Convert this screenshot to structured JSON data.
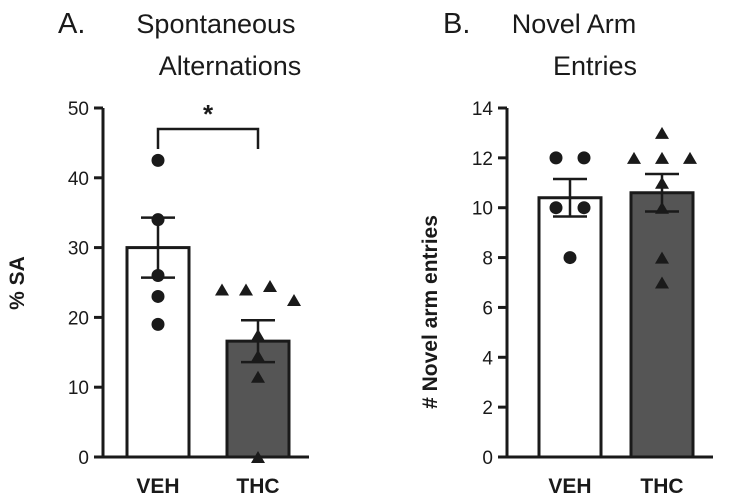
{
  "colors": {
    "ink": "#1a1a1a",
    "veh_fill": "#ffffff",
    "thc_fill": "#555555"
  },
  "chart_data": [
    {
      "type": "bar",
      "panel_letter": "A.",
      "title_lines": [
        "Spontaneous",
        "Alternations"
      ],
      "ylabel": "% SA",
      "xlabel": "",
      "ylim": [
        0,
        50
      ],
      "yticks": [
        0,
        10,
        20,
        30,
        40,
        50
      ],
      "categories": [
        "VEH",
        "THC"
      ],
      "values": [
        30,
        16.6
      ],
      "sem": [
        4.3,
        3.0
      ],
      "individual_points": [
        [
          42.5,
          34.0,
          26.0,
          23.0,
          19.0
        ],
        [
          24.0,
          24.0,
          24.5,
          22.5,
          17.5,
          14.5,
          11.5,
          0.0
        ]
      ],
      "markers": [
        "circle",
        "triangle"
      ],
      "significance": {
        "label": "*",
        "from": "VEH",
        "to": "THC",
        "y": 47
      }
    },
    {
      "type": "bar",
      "panel_letter": "B.",
      "title_lines": [
        "Novel Arm",
        "Entries"
      ],
      "ylabel": "# Novel arm entries",
      "xlabel": "",
      "ylim": [
        0,
        14
      ],
      "yticks": [
        0,
        2,
        4,
        6,
        8,
        10,
        12,
        14
      ],
      "categories": [
        "VEH",
        "THC"
      ],
      "values": [
        10.4,
        10.6
      ],
      "sem": [
        0.75,
        0.75
      ],
      "individual_points": [
        [
          12,
          12,
          10,
          10,
          8
        ],
        [
          13,
          12,
          12,
          12,
          11,
          10,
          8,
          7
        ]
      ],
      "markers": [
        "circle",
        "triangle"
      ]
    }
  ]
}
